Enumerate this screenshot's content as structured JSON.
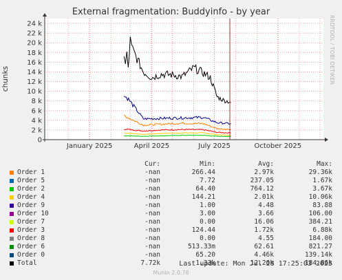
{
  "chart_data": {
    "type": "line",
    "title": "External fragmentation: Buddyinfo - by year",
    "ylabel": "chunks",
    "xlabel": "",
    "ylim": [
      0,
      25000
    ],
    "yticks": [
      "0",
      "2 k",
      "4 k",
      "6 k",
      "8 k",
      "10 k",
      "12 k",
      "14 k",
      "16 k",
      "18 k",
      "20 k",
      "22 k",
      "24 k"
    ],
    "xticks": [
      "January 2025",
      "April 2025",
      "July 2025",
      "October 2025"
    ],
    "grid": true,
    "series": [
      {
        "name": "Total",
        "color": "#000000",
        "x": [
          "2025-02-20",
          "2025-02-22",
          "2025-02-24",
          "2025-02-26",
          "2025-03-01",
          "2025-03-03",
          "2025-03-20",
          "2025-04-01",
          "2025-04-15",
          "2025-05-01",
          "2025-05-15",
          "2025-06-01",
          "2025-06-15",
          "2025-06-25",
          "2025-07-05",
          "2025-07-15",
          "2025-07-25"
        ],
        "values": [
          16800,
          15500,
          17500,
          14800,
          20500,
          19000,
          14000,
          12800,
          13500,
          13400,
          13000,
          14800,
          13800,
          12800,
          8800,
          8100,
          7720
        ]
      },
      {
        "name": "Order 0",
        "color": "#000080",
        "x": [
          "2025-02-20",
          "2025-02-25",
          "2025-03-20",
          "2025-04-15",
          "2025-05-15",
          "2025-06-15",
          "2025-07-05",
          "2025-07-25"
        ],
        "values": [
          9000,
          8600,
          4300,
          4400,
          4500,
          4600,
          3500,
          3300
        ]
      },
      {
        "name": "Order 1",
        "color": "#ff7f00",
        "x": [
          "2025-02-20",
          "2025-02-25",
          "2025-03-20",
          "2025-04-15",
          "2025-05-15",
          "2025-06-15",
          "2025-07-05",
          "2025-07-25"
        ],
        "values": [
          5000,
          4600,
          3000,
          3200,
          3400,
          3300,
          2300,
          2100
        ]
      },
      {
        "name": "Order 2",
        "color": "#00cc00",
        "x": [
          "2025-02-20",
          "2025-03-20",
          "2025-04-15",
          "2025-05-15",
          "2025-06-15",
          "2025-07-05",
          "2025-07-25"
        ],
        "values": [
          800,
          700,
          800,
          900,
          900,
          700,
          650
        ]
      },
      {
        "name": "Order 3",
        "color": "#ff0000",
        "x": [
          "2025-02-20",
          "2025-03-20",
          "2025-04-15",
          "2025-05-15",
          "2025-06-15",
          "2025-07-05",
          "2025-07-25"
        ],
        "values": [
          2200,
          1800,
          2000,
          2100,
          2050,
          1500,
          1400
        ]
      },
      {
        "name": "Order 4",
        "color": "#ffcc00",
        "x": [
          "2025-02-20",
          "2025-03-20",
          "2025-04-15",
          "2025-05-15",
          "2025-06-15",
          "2025-07-05",
          "2025-07-25"
        ],
        "values": [
          1400,
          1100,
          1300,
          1400,
          1400,
          1000,
          900
        ]
      }
    ],
    "legend": {
      "headers": [
        "Cur:",
        "Min:",
        "Avg:",
        "Max:"
      ],
      "rows": [
        {
          "name": "Order 1",
          "color": "#ff7f00",
          "cur": "-nan",
          "min": "266.44",
          "avg": "2.97k",
          "max": "29.36k"
        },
        {
          "name": "Order 5",
          "color": "#0066b3",
          "cur": "-nan",
          "min": "7.72",
          "avg": "237.05",
          "max": "1.67k"
        },
        {
          "name": "Order 2",
          "color": "#00cc00",
          "cur": "-nan",
          "min": "64.40",
          "avg": "764.12",
          "max": "3.67k"
        },
        {
          "name": "Order 4",
          "color": "#ffcc00",
          "cur": "-nan",
          "min": "144.21",
          "avg": "2.01k",
          "max": "10.06k"
        },
        {
          "name": "Order 9",
          "color": "#330099",
          "cur": "-nan",
          "min": "1.00",
          "avg": "4.48",
          "max": "83.88"
        },
        {
          "name": "Order 10",
          "color": "#990099",
          "cur": "-nan",
          "min": "3.00",
          "avg": "3.66",
          "max": "106.00"
        },
        {
          "name": "Order 7",
          "color": "#ccff00",
          "cur": "-nan",
          "min": "0.00",
          "avg": "16.06",
          "max": "384.21"
        },
        {
          "name": "Order 3",
          "color": "#ff0000",
          "cur": "-nan",
          "min": "124.44",
          "avg": "1.72k",
          "max": "6.88k"
        },
        {
          "name": "Order 8",
          "color": "#808080",
          "cur": "-nan",
          "min": "0.00",
          "avg": "4.55",
          "max": "184.00"
        },
        {
          "name": "Order 6",
          "color": "#008f00",
          "cur": "-nan",
          "min": "513.33m",
          "avg": "62.61",
          "max": "821.27"
        },
        {
          "name": "Order 0",
          "color": "#00487d",
          "cur": "-nan",
          "min": "65.20",
          "avg": "4.46k",
          "max": "139.14k"
        },
        {
          "name": "Total",
          "color": "#000000",
          "cur": "7.72k",
          "min": "1.33k",
          "avg": "12.26k",
          "max": "184.86k"
        }
      ]
    }
  },
  "rrd_label": "RRDTOOL / TOBI OETIKER",
  "last_update": "Last update: Mon Jul 28 17:25:03 2025",
  "munin_version": "Munin 2.0.76"
}
